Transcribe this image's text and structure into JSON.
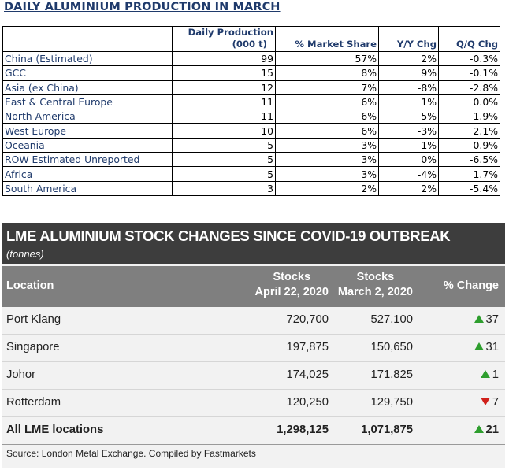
{
  "production": {
    "title": "DAILY ALUMINIUM PRODUCTION IN MARCH",
    "headers": {
      "daily_production": "Daily Production",
      "daily_production_unit": "(000 t)",
      "market_share": "% Market Share",
      "yy": "Y/Y Chg",
      "qq": "Q/Q Chg"
    },
    "rows": [
      {
        "location": "China (Estimated)",
        "daily": "99",
        "share": "57%",
        "yy": "2%",
        "qq": "-0.3%",
        "yy_sign": "pos",
        "qq_sign": "neg"
      },
      {
        "location": "GCC",
        "daily": "15",
        "share": "8%",
        "yy": "9%",
        "qq": "-0.1%",
        "yy_sign": "pos",
        "qq_sign": "neg"
      },
      {
        "location": "Asia (ex China)",
        "daily": "12",
        "share": "7%",
        "yy": "-8%",
        "qq": "-2.8%",
        "yy_sign": "neg",
        "qq_sign": "neg"
      },
      {
        "location": "East & Central Europe",
        "daily": "11",
        "share": "6%",
        "yy": "1%",
        "qq": "0.0%",
        "yy_sign": "pos",
        "qq_sign": "pos"
      },
      {
        "location": "North America",
        "daily": "11",
        "share": "6%",
        "yy": "5%",
        "qq": "1.9%",
        "yy_sign": "pos",
        "qq_sign": "pos"
      },
      {
        "location": "West Europe",
        "daily": "10",
        "share": "6%",
        "yy": "-3%",
        "qq": "2.1%",
        "yy_sign": "neg",
        "qq_sign": "pos"
      },
      {
        "location": "Oceania",
        "daily": "5",
        "share": "3%",
        "yy": "-1%",
        "qq": "-0.9%",
        "yy_sign": "neg",
        "qq_sign": "neg"
      },
      {
        "location": "ROW Estimated Unreported",
        "daily": "5",
        "share": "3%",
        "yy": "0%",
        "qq": "-6.5%",
        "yy_sign": "zero",
        "qq_sign": "neg"
      },
      {
        "location": "Africa",
        "daily": "5",
        "share": "3%",
        "yy": "-4%",
        "qq": "1.7%",
        "yy_sign": "neg",
        "qq_sign": "pos"
      },
      {
        "location": "South America",
        "daily": "3",
        "share": "2%",
        "yy": "2%",
        "qq": "-5.4%",
        "yy_sign": "pos",
        "qq_sign": "neg"
      }
    ]
  },
  "lme": {
    "title": "LME ALUMINIUM STOCK CHANGES SINCE COVID-19 OUTBREAK",
    "subtitle": "(tonnes)",
    "headers": {
      "location": "Location",
      "stocks_a_line1": "Stocks",
      "stocks_a_line2": "April 22, 2020",
      "stocks_b_line1": "Stocks",
      "stocks_b_line2": "March 2, 2020",
      "change": "% Change"
    },
    "colors": {
      "up": "#2e9e2e",
      "down": "#d0201a",
      "header_dark": "#3d3d3d",
      "header_mid": "#7f7f7f"
    },
    "rows": [
      {
        "location": "Port Klang",
        "april": "720,700",
        "march": "527,100",
        "change": "37",
        "direction": "up"
      },
      {
        "location": "Singapore",
        "april": "197,875",
        "march": "150,650",
        "change": "31",
        "direction": "up"
      },
      {
        "location": "Johor",
        "april": "174,025",
        "march": "171,825",
        "change": "1",
        "direction": "up"
      },
      {
        "location": "Rotterdam",
        "april": "120,250",
        "march": "129,750",
        "change": "7",
        "direction": "down"
      }
    ],
    "total": {
      "location": "All LME locations",
      "april": "1,298,125",
      "march": "1,071,875",
      "change": "21",
      "direction": "up"
    },
    "source": "Source: London Metal Exchange. Compiled by Fastmarkets"
  }
}
